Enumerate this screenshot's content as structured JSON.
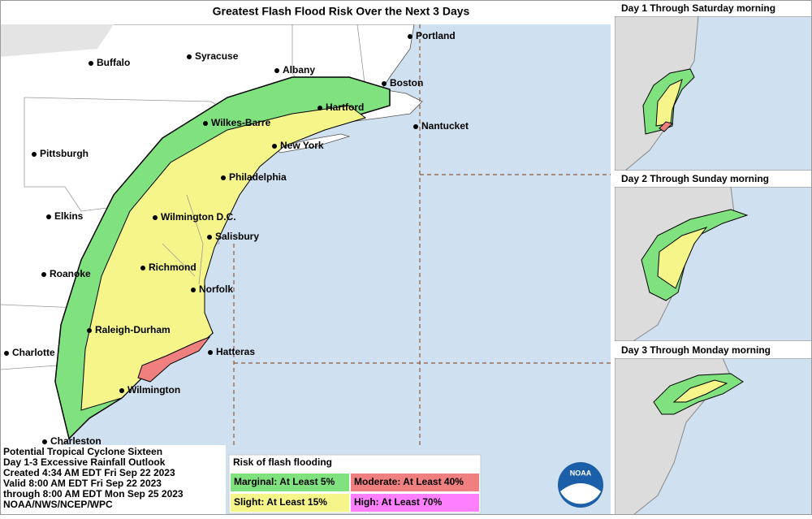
{
  "title": "Greatest Flash Flood Risk Over the Next 3 Days",
  "cities": [
    "Portland",
    "Buffalo",
    "Syracuse",
    "Albany",
    "Boston",
    "Hartford",
    "Nantucket",
    "Wilkes-Barre",
    "New York",
    "Pittsburgh",
    "Philadelphia",
    "Elkins",
    "Wilmington D.C.",
    "Salisbury",
    "Roanoke",
    "Richmond",
    "Norfolk",
    "Raleigh-Durham",
    "Charlotte",
    "Hatteras",
    "Wilmington",
    "Charleston"
  ],
  "insets": [
    {
      "title": "Day 1 Through Saturday morning"
    },
    {
      "title": "Day 2 Through Sunday morning"
    },
    {
      "title": "Day 3 Through Monday morning"
    }
  ],
  "info": [
    "Potential Tropical Cyclone Sixteen",
    "Day 1-3 Excessive Rainfall Outlook",
    "Created 4:34 AM EDT Fri Sep 22 2023",
    "Valid 8:00 AM EDT Fri Sep 22 2023",
    "through 8:00 AM EDT Mon Sep 25 2023",
    "NOAA/NWS/NCEP/WPC"
  ],
  "legend": {
    "title": "Risk of flash flooding",
    "items": [
      {
        "label": "Marginal: At Least 5%",
        "color": "#80e27e"
      },
      {
        "label": "Moderate: At Least 40%",
        "color": "#f08080"
      },
      {
        "label": "Slight: At Least 15%",
        "color": "#f5f58a"
      },
      {
        "label": "High: At Least 70%",
        "color": "#ff80ff"
      }
    ]
  },
  "logo": "NOAA"
}
